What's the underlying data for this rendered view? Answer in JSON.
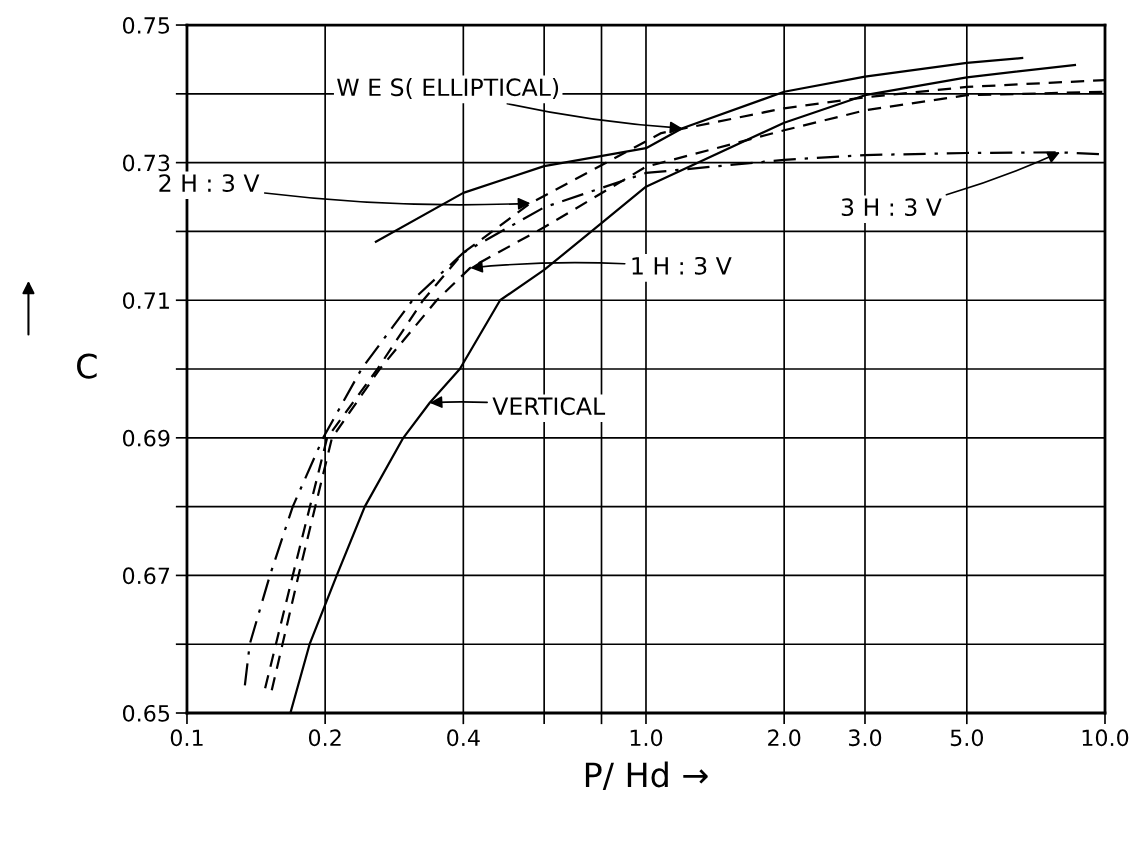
{
  "chart_data": {
    "type": "line",
    "xlabel": "P/ Hd →",
    "ylabel": "C",
    "log": "x",
    "grid": true,
    "legend": false,
    "xlim": [
      0.1,
      10
    ],
    "ylim": [
      0.65,
      0.75
    ],
    "xticks": [
      0.1,
      0.2,
      0.4,
      {
        "value": 0.6,
        "label": null
      },
      {
        "value": 0.8,
        "label": null
      },
      {
        "value": 1.0,
        "label": "1.0"
      },
      {
        "value": 2.0,
        "label": "2.0"
      },
      {
        "value": 3.0,
        "label": "3.0"
      },
      {
        "value": 5.0,
        "label": "5.0"
      },
      {
        "value": 10.0,
        "label": "10.0"
      }
    ],
    "yticks": [
      0.65,
      {
        "value": 0.66,
        "label": null
      },
      0.67,
      {
        "value": 0.68,
        "label": null
      },
      0.69,
      {
        "value": 0.7,
        "label": null
      },
      0.71,
      {
        "value": 0.72,
        "label": null
      },
      0.73,
      {
        "value": 0.74,
        "label": null
      },
      0.75
    ],
    "series": [
      {
        "color": "#000000",
        "line_style": "solid",
        "x": [
          0.258,
          0.4,
          0.6,
          1.0,
          1.2,
          2.0,
          3.0,
          5.0,
          6.6
        ],
        "values": [
          0.7185,
          0.7256,
          0.7295,
          0.7321,
          0.735,
          0.7403,
          0.7425,
          0.7445,
          0.7452
        ]
      },
      {
        "color": "#000000",
        "line_style": "dashed",
        "x": [
          0.148,
          0.17,
          0.202,
          0.26,
          0.327,
          0.4,
          0.56,
          1.08,
          2.0,
          3.0,
          5.0,
          10.0
        ],
        "values": [
          0.6536,
          0.67,
          0.69,
          0.7,
          0.71,
          0.7169,
          0.7241,
          0.7343,
          0.7379,
          0.7395,
          0.741,
          0.742
        ]
      },
      {
        "color": "#000000",
        "line_style": "dashed",
        "x": [
          0.153,
          0.175,
          0.207,
          0.263,
          0.35,
          0.414,
          0.6,
          1.0,
          2.0,
          3.0,
          5.0,
          10.0
        ],
        "values": [
          0.6533,
          0.67,
          0.69,
          0.7,
          0.71,
          0.7147,
          0.7206,
          0.7294,
          0.7347,
          0.7376,
          0.7398,
          0.7403
        ]
      },
      {
        "color": "#000000",
        "line_style": "dashdot",
        "x": [
          0.1337,
          0.137,
          0.1516,
          0.17,
          0.198,
          0.24,
          0.31,
          0.4,
          0.6,
          1.0,
          2.0,
          3.0,
          5.0,
          7.98,
          10.0
        ],
        "values": [
          0.654,
          0.66,
          0.67,
          0.68,
          0.69,
          0.7,
          0.71,
          0.7169,
          0.7235,
          0.7285,
          0.7304,
          0.7311,
          0.7314,
          0.7315,
          0.7312
        ]
      },
      {
        "color": "#000000",
        "line_style": "solid",
        "x": [
          0.168,
          0.185,
          0.212,
          0.244,
          0.296,
          0.338,
          0.393,
          0.481,
          0.6,
          0.8,
          1.0,
          2.0,
          3.0,
          5.0,
          8.6
        ],
        "values": [
          0.65,
          0.66,
          0.67,
          0.68,
          0.69,
          0.6951,
          0.7,
          0.71,
          0.7144,
          0.7212,
          0.7265,
          0.7358,
          0.7398,
          0.7424,
          0.7442
        ]
      }
    ],
    "annotations": [
      {
        "text": "W E S( ELLIPTICAL)",
        "x": 1.2,
        "y": 0.735
      },
      {
        "text": "2 H : 3 V",
        "x": 0.56,
        "y": 0.7241
      },
      {
        "text": "1 H : 3 V",
        "x": 0.414,
        "y": 0.7147
      },
      {
        "text": "VERTICAL",
        "x": 0.338,
        "y": 0.6951
      },
      {
        "text": "3 H : 3 V",
        "x": 7.98,
        "y": 0.7315
      }
    ]
  }
}
